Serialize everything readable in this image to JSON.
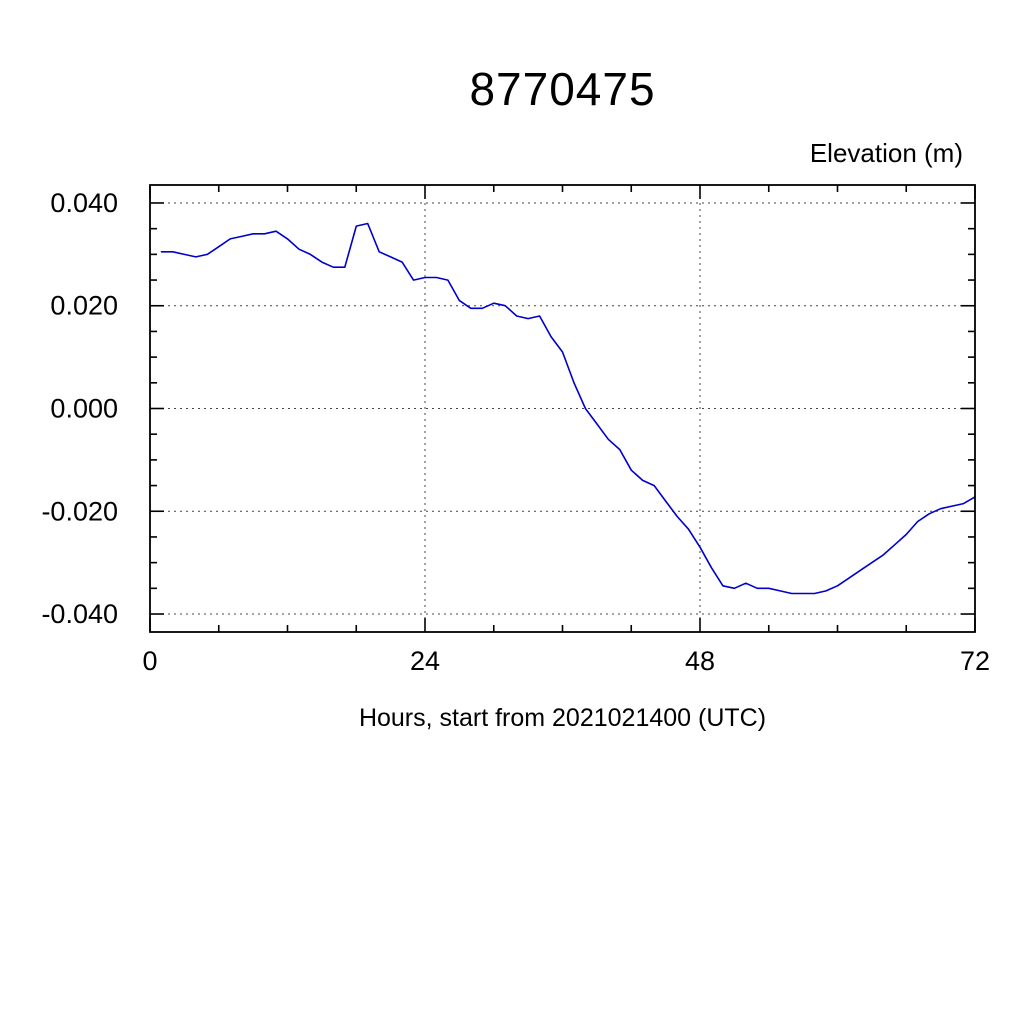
{
  "chart": {
    "title": "8770475",
    "ylabel": "Elevation (m)",
    "xlabel": "Hours, start from 2021021400 (UTC)"
  },
  "chart_data": {
    "type": "line",
    "title": "8770475",
    "xlabel": "Hours, start from 2021021400 (UTC)",
    "ylabel": "Elevation (m)",
    "xlim": [
      0,
      72
    ],
    "ylim": [
      -0.0435,
      0.0435
    ],
    "xticks": [
      0,
      24,
      48,
      72
    ],
    "xtick_labels": [
      "0",
      "24",
      "48",
      "72"
    ],
    "x_minor_step": 6,
    "yticks": [
      -0.04,
      -0.02,
      0.0,
      0.02,
      0.04
    ],
    "ytick_labels": [
      "-0.040",
      "-0.020",
      "0.000",
      "0.020",
      "0.040"
    ],
    "y_minor_step": 0.005,
    "grid": {
      "style": "dashed",
      "horizontal_at": [
        -0.04,
        -0.02,
        0.0,
        0.02,
        0.04
      ],
      "vertical_at": [
        24,
        48
      ]
    },
    "legend": "none",
    "line_color": "#0000cd",
    "axis_color": "#000000",
    "grid_color": "#444444",
    "series": [
      {
        "name": "elevation",
        "x": [
          1,
          2,
          3,
          4,
          5,
          6,
          7,
          8,
          9,
          10,
          11,
          12,
          13,
          14,
          15,
          16,
          17,
          18,
          19,
          20,
          21,
          22,
          23,
          24,
          25,
          26,
          27,
          28,
          29,
          30,
          31,
          32,
          33,
          34,
          35,
          36,
          37,
          38,
          39,
          40,
          41,
          42,
          43,
          44,
          45,
          46,
          47,
          48,
          49,
          50,
          51,
          52,
          53,
          54,
          55,
          56,
          57,
          58,
          59,
          60,
          61,
          62,
          63,
          64,
          65,
          66,
          67,
          68,
          69,
          70,
          71,
          72
        ],
        "y": [
          0.0305,
          0.0305,
          0.03,
          0.0295,
          0.03,
          0.0315,
          0.033,
          0.0335,
          0.034,
          0.034,
          0.0345,
          0.033,
          0.031,
          0.03,
          0.0285,
          0.0275,
          0.0275,
          0.0355,
          0.036,
          0.0305,
          0.0295,
          0.0285,
          0.025,
          0.0255,
          0.0255,
          0.025,
          0.021,
          0.0195,
          0.0195,
          0.0205,
          0.02,
          0.018,
          0.0175,
          0.018,
          0.014,
          0.011,
          0.005,
          0.0,
          -0.003,
          -0.006,
          -0.008,
          -0.012,
          -0.014,
          -0.015,
          -0.018,
          -0.021,
          -0.0235,
          -0.027,
          -0.031,
          -0.0345,
          -0.035,
          -0.034,
          -0.035,
          -0.035,
          -0.0355,
          -0.036,
          -0.036,
          -0.036,
          -0.0355,
          -0.0345,
          -0.033,
          -0.0315,
          -0.03,
          -0.0285,
          -0.0265,
          -0.0245,
          -0.022,
          -0.0205,
          -0.0195,
          -0.019,
          -0.0185,
          -0.0172
        ]
      }
    ]
  }
}
